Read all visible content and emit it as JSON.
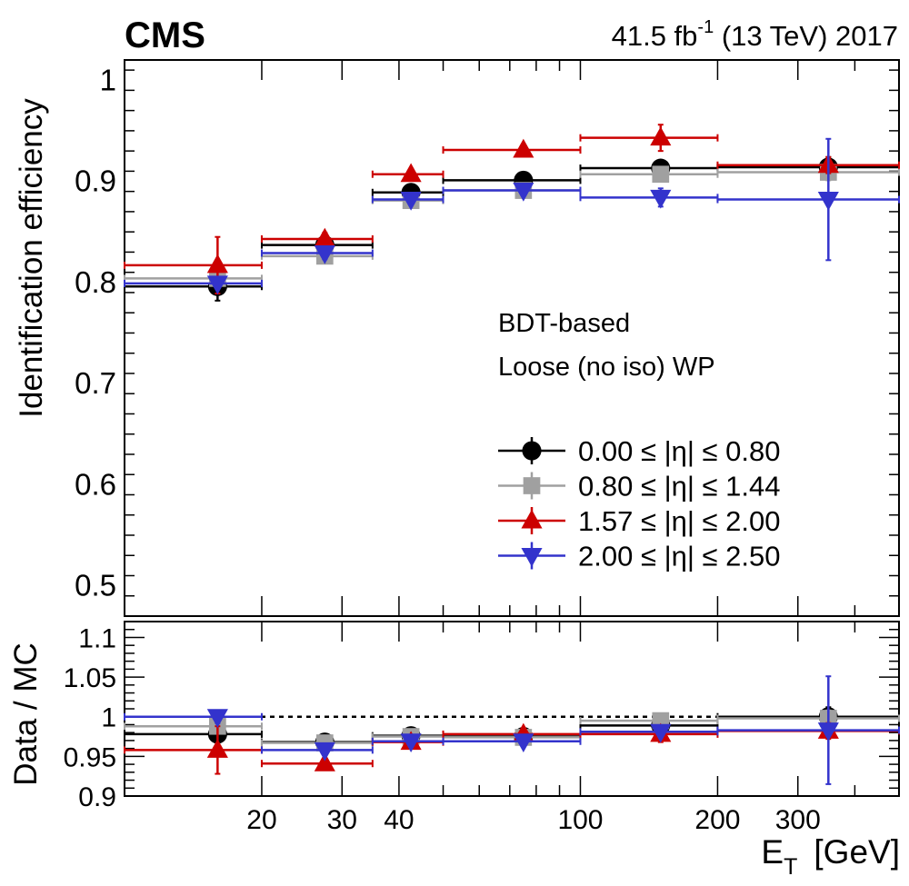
{
  "header": {
    "experiment": "CMS",
    "lumi_value": "41.5 fb",
    "lumi_exponent": "-1",
    "lumi_conditions": " (13 TeV) 2017"
  },
  "annotation": {
    "line1": "BDT-based",
    "line2": "Loose (no iso) WP"
  },
  "colors": {
    "s0": "#000000",
    "s1": "#a0a0a0",
    "s2": "#cc0000",
    "s3": "#3333cc"
  },
  "chart_data": {
    "type": "scatter",
    "x_scale": "log",
    "xlabel_main": "E",
    "xlabel_sub": "T",
    "xlabel_unit": "[GeV]",
    "xlim": [
      10,
      500
    ],
    "x_ticks": [
      {
        "value": 20,
        "label": "20"
      },
      {
        "value": 30,
        "label": "30"
      },
      {
        "value": 40,
        "label": "40"
      },
      {
        "value": 100,
        "label": "100"
      },
      {
        "value": 200,
        "label": "200"
      },
      {
        "value": 300,
        "label": "300"
      }
    ],
    "bins": [
      [
        10,
        20
      ],
      [
        20,
        35
      ],
      [
        35,
        50
      ],
      [
        50,
        100
      ],
      [
        100,
        200
      ],
      [
        200,
        500
      ]
    ],
    "top": {
      "ylabel": "Identification efficiency",
      "ylim": [
        0.47,
        1.02
      ],
      "y_ticks": [
        {
          "value": 0.5,
          "label": "0.5"
        },
        {
          "value": 0.6,
          "label": "0.6"
        },
        {
          "value": 0.7,
          "label": "0.7"
        },
        {
          "value": 0.8,
          "label": "0.8"
        },
        {
          "value": 0.9,
          "label": "0.9"
        },
        {
          "value": 1.0,
          "label": "1"
        }
      ],
      "series": [
        {
          "name": "0.00 ≤ |η| ≤ 0.80",
          "marker": "circle",
          "color": "#000000",
          "x": [
            16,
            27.5,
            42.5,
            75,
            150,
            350
          ],
          "y": [
            0.796,
            0.837,
            0.889,
            0.901,
            0.913,
            0.914
          ],
          "err": [
            0.014,
            0.006,
            0.004,
            0.004,
            0.006,
            0.01
          ]
        },
        {
          "name": "0.80 ≤ |η| ≤ 1.44",
          "marker": "square",
          "color": "#a0a0a0",
          "x": [
            16,
            27.5,
            42.5,
            75,
            150,
            350
          ],
          "y": [
            0.804,
            0.826,
            0.881,
            0.891,
            0.907,
            0.909
          ],
          "err": [
            0.005,
            0.006,
            0.004,
            0.004,
            0.005,
            0.008
          ]
        },
        {
          "name": "1.57 ≤ |η| ≤ 2.00",
          "marker": "triangle-up",
          "color": "#cc0000",
          "x": [
            16,
            27.5,
            42.5,
            75,
            150,
            350
          ],
          "y": [
            0.817,
            0.843,
            0.907,
            0.931,
            0.943,
            0.916
          ],
          "err": [
            0.028,
            0.006,
            0.004,
            0.004,
            0.013,
            0.008
          ]
        },
        {
          "name": "2.00 ≤ |η| ≤ 2.50",
          "marker": "triangle-down",
          "color": "#3333cc",
          "x": [
            16,
            27.5,
            42.5,
            75,
            150,
            350
          ],
          "y": [
            0.799,
            0.829,
            0.882,
            0.891,
            0.884,
            0.882
          ],
          "err": [
            0.005,
            0.006,
            0.004,
            0.004,
            0.009,
            0.06
          ]
        }
      ]
    },
    "bottom": {
      "ylabel": "Data / MC",
      "ylim": [
        0.9,
        1.12
      ],
      "reference_line": 1.0,
      "y_ticks": [
        {
          "value": 0.9,
          "label": "0.9"
        },
        {
          "value": 0.95,
          "label": "0.95"
        },
        {
          "value": 1.0,
          "label": "1"
        },
        {
          "value": 1.05,
          "label": "1.05"
        },
        {
          "value": 1.1,
          "label": "1.1"
        }
      ],
      "series": [
        {
          "name": "0.00 ≤ |η| ≤ 0.80",
          "marker": "circle",
          "color": "#000000",
          "y": [
            0.978,
            0.968,
            0.976,
            0.975,
            0.989,
            1.0
          ],
          "err": [
            0.01,
            0.006,
            0.004,
            0.004,
            0.006,
            0.012
          ]
        },
        {
          "name": "0.80 ≤ |η| ≤ 1.44",
          "marker": "square",
          "color": "#a0a0a0",
          "y": [
            0.988,
            0.967,
            0.975,
            0.974,
            0.995,
            0.998
          ],
          "err": [
            0.004,
            0.005,
            0.004,
            0.004,
            0.005,
            0.01
          ]
        },
        {
          "name": "1.57 ≤ |η| ≤ 2.00",
          "marker": "triangle-up",
          "color": "#cc0000",
          "y": [
            0.958,
            0.941,
            0.968,
            0.978,
            0.978,
            0.982
          ],
          "err": [
            0.03,
            0.006,
            0.004,
            0.004,
            0.01,
            0.01
          ]
        },
        {
          "name": "2.00 ≤ |η| ≤ 2.50",
          "marker": "triangle-down",
          "color": "#3333cc",
          "y": [
            1.0,
            0.958,
            0.969,
            0.969,
            0.981,
            0.983
          ],
          "err": [
            0.008,
            0.005,
            0.004,
            0.004,
            0.006,
            0.068
          ]
        }
      ]
    },
    "legend": {
      "placement": "lower-right of top panel"
    }
  }
}
